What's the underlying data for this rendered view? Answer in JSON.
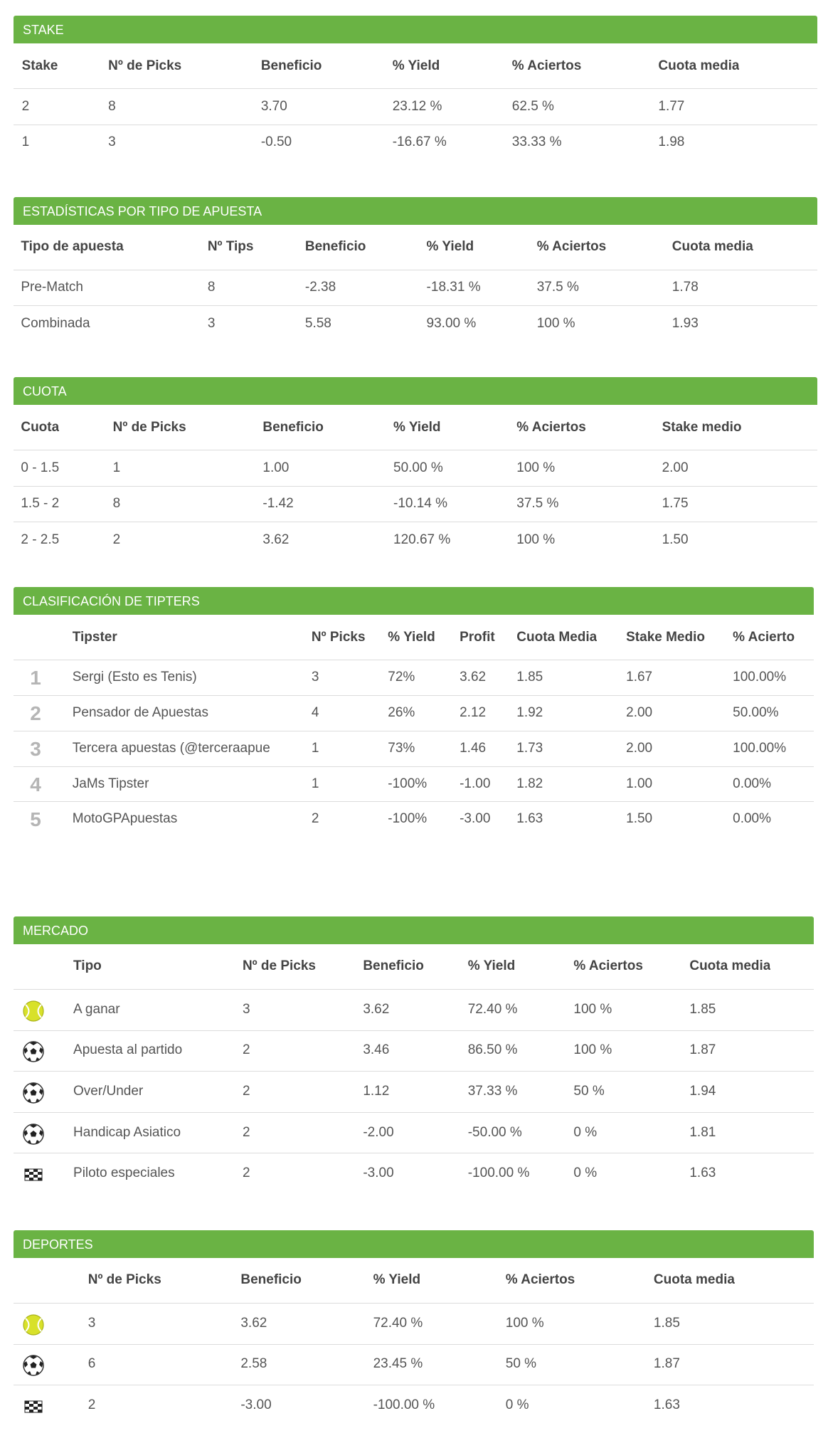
{
  "sections": [
    {
      "title": "STAKE",
      "headers": [
        "Stake",
        "Nº de Picks",
        "Beneficio",
        "% Yield",
        "% Aciertos",
        "Cuota media"
      ],
      "rows": [
        [
          "2",
          "8",
          "3.70",
          "23.12 %",
          "62.5 %",
          "1.77"
        ],
        [
          "1",
          "3",
          "-0.50",
          "-16.67 %",
          "33.33 %",
          "1.98"
        ]
      ]
    },
    {
      "title": "ESTADÍSTICAS POR TIPO DE APUESTA",
      "headers": [
        "Tipo de apuesta",
        "Nº Tips",
        "Beneficio",
        "% Yield",
        "% Aciertos",
        "Cuota media"
      ],
      "rows": [
        [
          "Pre-Match",
          "8",
          "-2.38",
          "-18.31 %",
          "37.5 %",
          "1.78"
        ],
        [
          "Combinada",
          "3",
          "5.58",
          "93.00 %",
          "100 %",
          "1.93"
        ]
      ]
    },
    {
      "title": "CUOTA",
      "headers": [
        "Cuota",
        "Nº de Picks",
        "Beneficio",
        "% Yield",
        "% Aciertos",
        "Stake medio"
      ],
      "rows": [
        [
          "0 - 1.5",
          "1",
          "1.00",
          "50.00 %",
          "100 %",
          "2.00"
        ],
        [
          "1.5 - 2",
          "8",
          "-1.42",
          "-10.14 %",
          "37.5 %",
          "1.75"
        ],
        [
          "2 - 2.5",
          "2",
          "3.62",
          "120.67 %",
          "100 %",
          "1.50"
        ]
      ]
    },
    {
      "title": "CLASIFICACIÓN DE TIPTERS",
      "headers": [
        "Tipster",
        "Nº Picks",
        "% Yield",
        "Profit",
        "Cuota Media",
        "Stake Medio",
        "% Acierto"
      ],
      "rows": [
        [
          "1",
          "Sergi (Esto es Tenis)",
          "3",
          "72%",
          "3.62",
          "1.85",
          "1.67",
          "100.00%"
        ],
        [
          "2",
          "Pensador de Apuestas",
          "4",
          "26%",
          "2.12",
          "1.92",
          "2.00",
          "50.00%"
        ],
        [
          "3",
          "Tercera apuestas (@terceraapue",
          "1",
          "73%",
          "1.46",
          "1.73",
          "2.00",
          "100.00%"
        ],
        [
          "4",
          "JaMs Tipster",
          "1",
          "-100%",
          "-1.00",
          "1.82",
          "1.00",
          "0.00%"
        ],
        [
          "5",
          "MotoGPApuestas",
          "2",
          "-100%",
          "-3.00",
          "1.63",
          "1.50",
          "0.00%"
        ]
      ]
    },
    {
      "title": "MERCADO",
      "headers": [
        "Tipo",
        "Nº de Picks",
        "Beneficio",
        "% Yield",
        "% Aciertos",
        "Cuota media"
      ],
      "rows": [
        [
          "A ganar",
          "3",
          "3.62",
          "72.40 %",
          "100 %",
          "1.85"
        ],
        [
          "Apuesta al partido",
          "2",
          "3.46",
          "86.50 %",
          "100 %",
          "1.87"
        ],
        [
          "Over/Under",
          "2",
          "1.12",
          "37.33 %",
          "50 %",
          "1.94"
        ],
        [
          "Handicap Asiatico",
          "2",
          "-2.00",
          "-50.00 %",
          "0 %",
          "1.81"
        ],
        [
          "Piloto especiales",
          "2",
          "-3.00",
          "-100.00 %",
          "0 %",
          "1.63"
        ]
      ]
    },
    {
      "title": "DEPORTES",
      "headers": [
        "Nº de Picks",
        "Beneficio",
        "% Yield",
        "% Aciertos",
        "Cuota media"
      ],
      "rows": [
        [
          "3",
          "3.62",
          "72.40 %",
          "100 %",
          "1.85"
        ],
        [
          "6",
          "2.58",
          "23.45 %",
          "50 %",
          "1.87"
        ],
        [
          "2",
          "-3.00",
          "-100.00 %",
          "0 %",
          "1.63"
        ]
      ]
    }
  ]
}
